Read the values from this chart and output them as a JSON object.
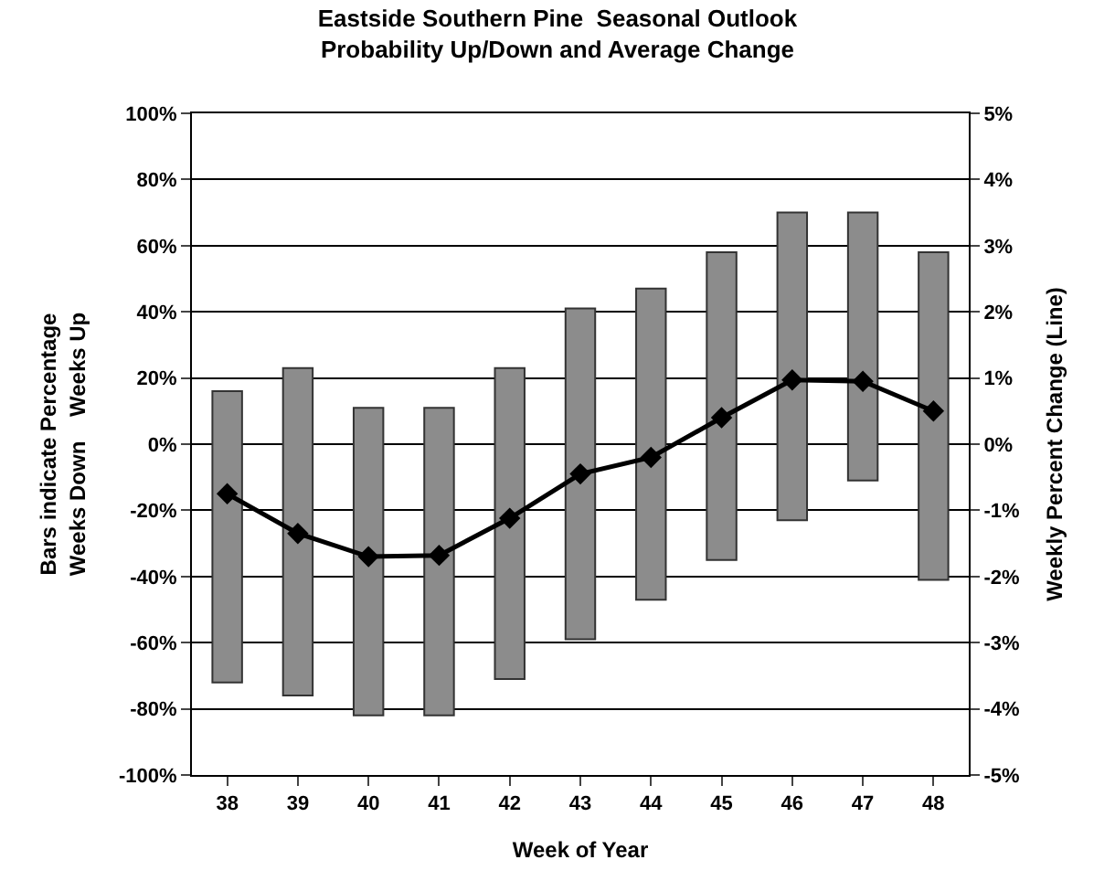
{
  "chart_data": {
    "type": "bar",
    "title": "Eastside Southern Pine  Seasonal Outlook\nProbability Up/Down and Average Change",
    "xlabel": "Week of Year",
    "ylabel": "Bars indicate Percentage\nWeeks Down    Weeks Up",
    "y2label": "Weekly Percent Change (Line)",
    "categories": [
      "38",
      "39",
      "40",
      "41",
      "42",
      "43",
      "44",
      "45",
      "46",
      "47",
      "48"
    ],
    "series": [
      {
        "color": "#8c8c8c",
        "base": [
          -72,
          -76,
          -82,
          -82,
          -71,
          -59,
          -47,
          -35,
          -23,
          -11,
          -41
        ],
        "values": [
          88,
          99,
          93,
          93,
          94,
          100,
          94,
          93,
          93,
          81,
          99
        ]
      },
      {
        "type": "line",
        "axis": "y2",
        "color": "#000000",
        "marker": "diamond",
        "line_style": "solid",
        "values": [
          -0.75,
          -1.35,
          -1.7,
          -1.68,
          -1.12,
          -0.45,
          -0.2,
          0.4,
          0.97,
          0.95,
          0.5
        ]
      }
    ],
    "ylim": [
      -100,
      100
    ],
    "yticks": [
      {
        "value": -100,
        "label": "-100%"
      },
      {
        "value": -80,
        "label": "-80%"
      },
      {
        "value": -60,
        "label": "-60%"
      },
      {
        "value": -40,
        "label": "-40%"
      },
      {
        "value": -20,
        "label": "-20%"
      },
      {
        "value": 0,
        "label": "0%"
      },
      {
        "value": 20,
        "label": "20%"
      },
      {
        "value": 40,
        "label": "40%"
      },
      {
        "value": 60,
        "label": "60%"
      },
      {
        "value": 80,
        "label": "80%"
      },
      {
        "value": 100,
        "label": "100%"
      }
    ],
    "y2lim": [
      -5,
      5
    ],
    "y2ticks": [
      {
        "value": -5,
        "label": "-5%"
      },
      {
        "value": -4,
        "label": "-4%"
      },
      {
        "value": -3,
        "label": "-3%"
      },
      {
        "value": -2,
        "label": "-2%"
      },
      {
        "value": -1,
        "label": "-1%"
      },
      {
        "value": 0,
        "label": "0%"
      },
      {
        "value": 1,
        "label": "1%"
      },
      {
        "value": 2,
        "label": "2%"
      },
      {
        "value": 3,
        "label": "3%"
      },
      {
        "value": 4,
        "label": "4%"
      },
      {
        "value": 5,
        "label": "5%"
      }
    ],
    "grid": "y"
  }
}
